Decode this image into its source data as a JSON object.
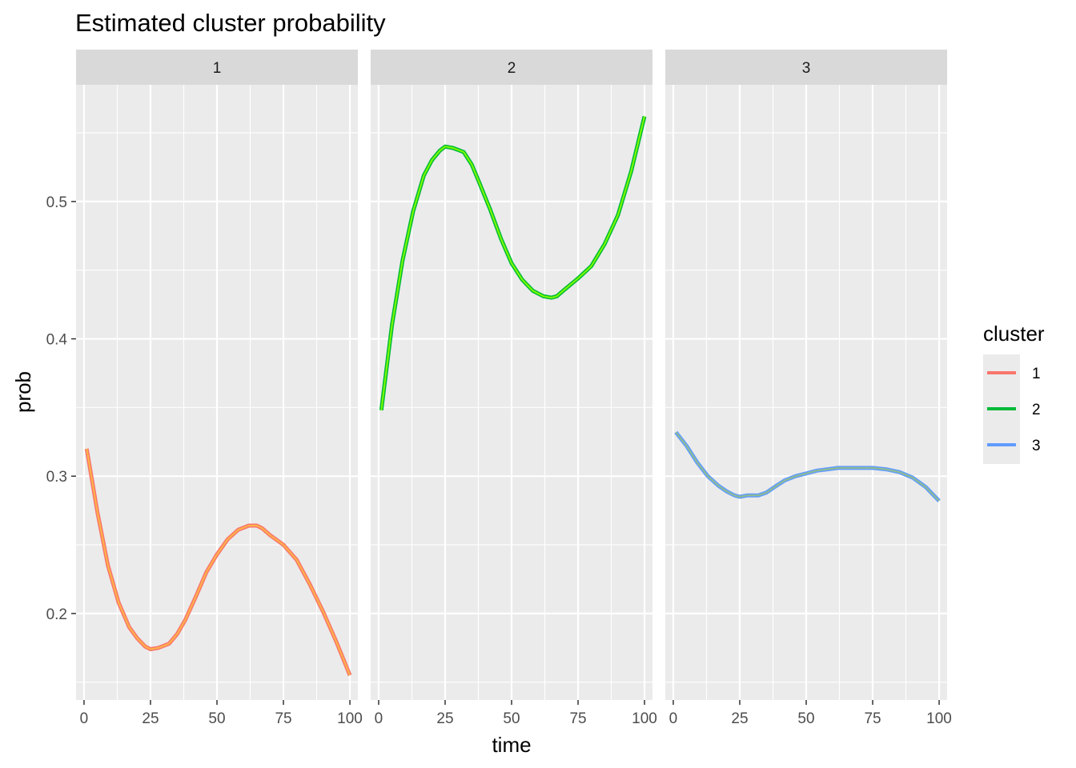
{
  "chart_data": {
    "type": "line",
    "title": "Estimated cluster probability",
    "xlabel": "time",
    "ylabel": "prob",
    "xlim": [
      -3,
      103
    ],
    "ylim": [
      0.137,
      0.585
    ],
    "x_ticks": [
      0,
      25,
      50,
      75,
      100
    ],
    "y_ticks": [
      0.2,
      0.3,
      0.4,
      0.5
    ],
    "y_tick_labels": [
      "0.2",
      "0.3",
      "0.4",
      "0.5"
    ],
    "grid": true,
    "legend": {
      "title": "cluster",
      "position": "right",
      "entries": [
        "1",
        "2",
        "3"
      ]
    },
    "panels": [
      {
        "strip": "1",
        "series": [
          {
            "cluster": "1",
            "color": "#F8766D",
            "x": [
              1,
              5,
              9,
              13,
              17,
              20,
              23,
              25,
              28,
              32,
              35,
              38,
              42,
              46,
              50,
              54,
              58,
              62,
              65,
              67,
              70,
              75,
              80,
              85,
              90,
              95,
              100
            ],
            "y": [
              0.32,
              0.274,
              0.235,
              0.208,
              0.19,
              0.182,
              0.176,
              0.174,
              0.175,
              0.178,
              0.185,
              0.195,
              0.212,
              0.23,
              0.243,
              0.254,
              0.261,
              0.264,
              0.264,
              0.262,
              0.257,
              0.25,
              0.239,
              0.221,
              0.201,
              0.179,
              0.155
            ]
          }
        ]
      },
      {
        "strip": "2",
        "series": [
          {
            "cluster": "2",
            "color": "#00BA38",
            "x": [
              1,
              5,
              9,
              13,
              17,
              20,
              23,
              25,
              28,
              32,
              35,
              38,
              42,
              46,
              50,
              54,
              58,
              62,
              65,
              67,
              70,
              75,
              80,
              85,
              90,
              95,
              100
            ],
            "y": [
              0.348,
              0.41,
              0.457,
              0.493,
              0.519,
              0.53,
              0.537,
              0.54,
              0.539,
              0.536,
              0.527,
              0.513,
              0.494,
              0.473,
              0.455,
              0.443,
              0.435,
              0.431,
              0.43,
              0.431,
              0.436,
              0.444,
              0.453,
              0.469,
              0.49,
              0.522,
              0.562
            ]
          }
        ]
      },
      {
        "strip": "3",
        "series": [
          {
            "cluster": "3",
            "color": "#619CFF",
            "x": [
              1,
              5,
              9,
              13,
              17,
              20,
              23,
              25,
              28,
              32,
              35,
              38,
              42,
              46,
              50,
              54,
              58,
              62,
              65,
              67,
              70,
              75,
              80,
              85,
              90,
              95,
              100
            ],
            "y": [
              0.332,
              0.322,
              0.31,
              0.3,
              0.293,
              0.289,
              0.286,
              0.285,
              0.286,
              0.286,
              0.288,
              0.292,
              0.297,
              0.3,
              0.302,
              0.304,
              0.305,
              0.306,
              0.306,
              0.306,
              0.306,
              0.306,
              0.305,
              0.303,
              0.299,
              0.292,
              0.282
            ]
          }
        ]
      }
    ]
  }
}
